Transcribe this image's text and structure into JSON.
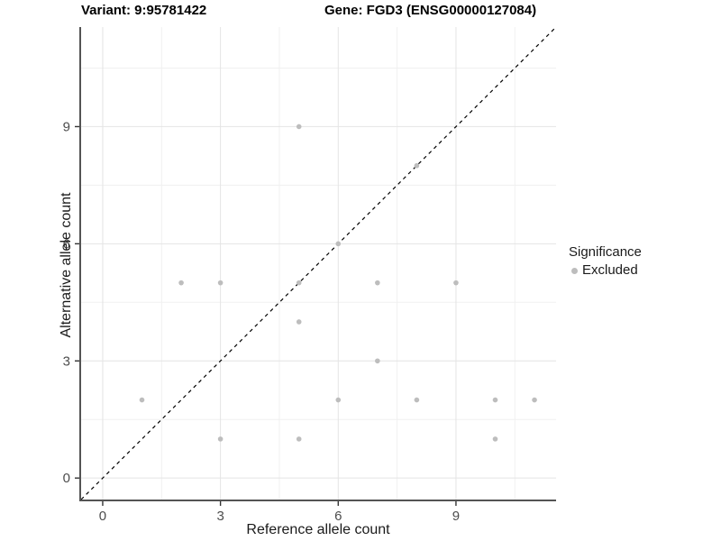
{
  "chart_data": {
    "type": "scatter",
    "title_left": "Variant: 9:95781422",
    "title_right": "Gene: FGD3 (ENSG00000127084)",
    "xlabel": "Reference allele count",
    "ylabel": "Alternative allele count",
    "xlim": [
      -0.55,
      11.55
    ],
    "ylim": [
      -0.55,
      11.55
    ],
    "x_ticks": [
      0,
      3,
      6,
      9
    ],
    "y_ticks": [
      0,
      3,
      6,
      9
    ],
    "minor_ticks": [
      1.5,
      4.5,
      7.5,
      10.5
    ],
    "grid": true,
    "identity_line": {
      "slope": 1,
      "intercept": 0,
      "style": "dashed",
      "color": "#000000"
    },
    "series": [
      {
        "name": "Excluded",
        "color": "#bdbdbd",
        "points": [
          [
            1,
            2
          ],
          [
            2,
            5
          ],
          [
            3,
            1
          ],
          [
            3,
            5
          ],
          [
            5,
            1
          ],
          [
            5,
            4
          ],
          [
            5,
            5
          ],
          [
            5,
            9
          ],
          [
            6,
            2
          ],
          [
            6,
            6
          ],
          [
            7,
            3
          ],
          [
            7,
            5
          ],
          [
            8,
            2
          ],
          [
            8,
            8
          ],
          [
            9,
            5
          ],
          [
            10,
            1
          ],
          [
            10,
            2
          ],
          [
            11,
            2
          ]
        ]
      }
    ],
    "legend": {
      "position": "right",
      "title": "Significance",
      "items": [
        {
          "label": "Excluded",
          "color": "#bdbdbd"
        }
      ]
    },
    "style": {
      "background": "#ffffff",
      "major_grid_color": "#e4e4e4",
      "minor_grid_color": "#f0f0f0",
      "axis_line_color": "#545454",
      "tick_color": "#333333",
      "tick_label_color": "#4d4d4d",
      "tick_label_size": 15,
      "point_radius": 2.8
    }
  }
}
